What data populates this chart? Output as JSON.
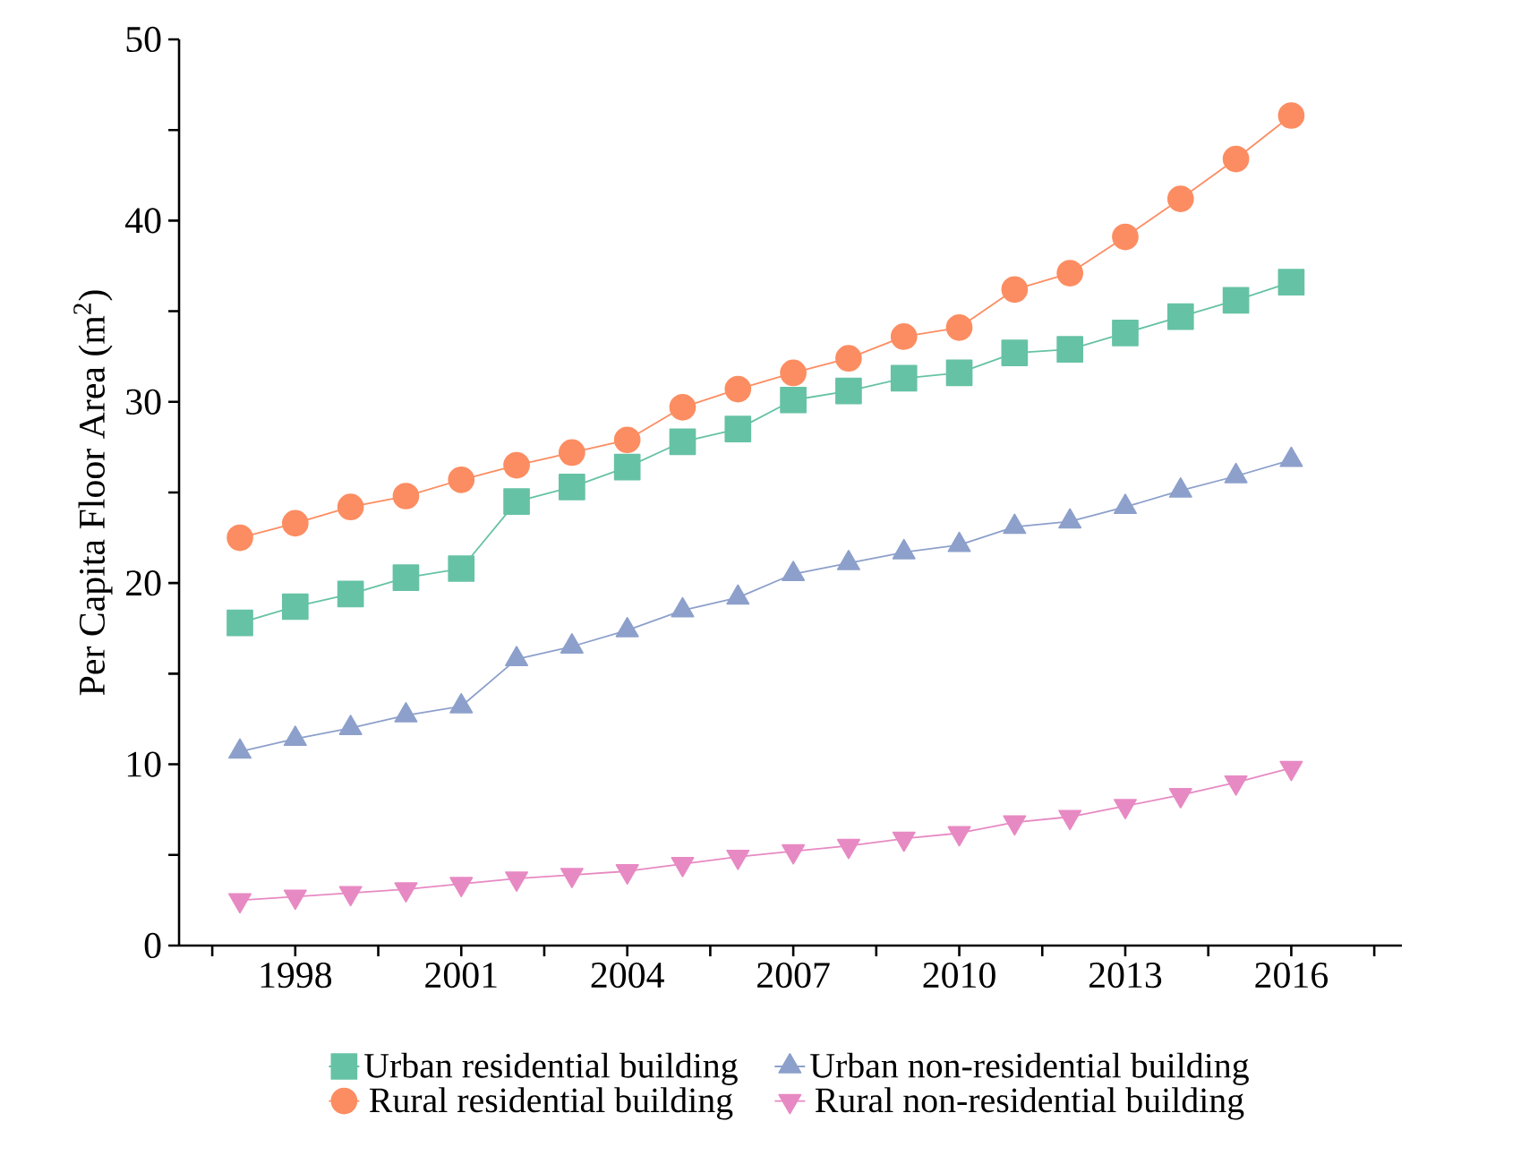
{
  "chart_data": {
    "type": "line",
    "ylabel": "Per Capita Floor Area (m$^{2}$)",
    "x": [
      1997,
      1998,
      1999,
      2000,
      2001,
      2002,
      2003,
      2004,
      2005,
      2006,
      2007,
      2008,
      2009,
      2010,
      2011,
      2012,
      2013,
      2014,
      2015,
      2016
    ],
    "xlim": [
      1995.9,
      2018
    ],
    "xticks": [
      {
        "value": 1996.5,
        "label": null
      },
      1998,
      {
        "value": 1999.5,
        "label": null
      },
      2001,
      {
        "value": 2002.5,
        "label": null
      },
      2004,
      {
        "value": 2005.5,
        "label": null
      },
      2007,
      {
        "value": 2008.5,
        "label": null
      },
      2010,
      {
        "value": 2011.5,
        "label": null
      },
      2013,
      {
        "value": 2014.5,
        "label": null
      },
      2016,
      {
        "value": 2017.5,
        "label": null
      }
    ],
    "ylim": [
      0,
      50
    ],
    "yticks": [
      0,
      {
        "value": 5,
        "label": null
      },
      10,
      {
        "value": 15,
        "label": null
      },
      20,
      {
        "value": 25,
        "label": null
      },
      30,
      {
        "value": 35,
        "label": null
      },
      40,
      {
        "value": 45,
        "label": null
      },
      50
    ],
    "legend": "bottom",
    "line_style": "solid",
    "series": [
      {
        "name": "Urban residential building",
        "color": "#66c2a5",
        "marker": "square",
        "values": [
          17.8,
          18.7,
          19.4,
          20.3,
          20.8,
          24.5,
          25.3,
          26.4,
          27.8,
          28.5,
          30.1,
          30.6,
          31.3,
          31.6,
          32.7,
          32.9,
          33.8,
          34.7,
          35.6,
          36.6
        ]
      },
      {
        "name": "Urban non-residential building",
        "color": "#8da0cb",
        "marker": "triangle",
        "values": [
          10.7,
          11.4,
          12.0,
          12.7,
          13.2,
          15.8,
          16.5,
          17.4,
          18.5,
          19.2,
          20.5,
          21.1,
          21.7,
          22.1,
          23.1,
          23.4,
          24.2,
          25.1,
          25.9,
          26.8
        ]
      },
      {
        "name": "Rural residential building",
        "color": "#fc8d62",
        "marker": "circle",
        "values": [
          22.5,
          23.3,
          24.2,
          24.8,
          25.7,
          26.5,
          27.2,
          27.9,
          29.7,
          30.7,
          31.6,
          32.4,
          33.6,
          34.1,
          36.2,
          37.1,
          39.1,
          41.2,
          43.4,
          45.8
        ]
      },
      {
        "name": "Rural non-residential building",
        "color": "#e78ac3",
        "marker": "triangle-down",
        "values": [
          2.5,
          2.7,
          2.9,
          3.1,
          3.4,
          3.7,
          3.9,
          4.1,
          4.5,
          4.9,
          5.2,
          5.5,
          5.9,
          6.2,
          6.8,
          7.1,
          7.7,
          8.3,
          9.0,
          9.8
        ]
      }
    ]
  }
}
